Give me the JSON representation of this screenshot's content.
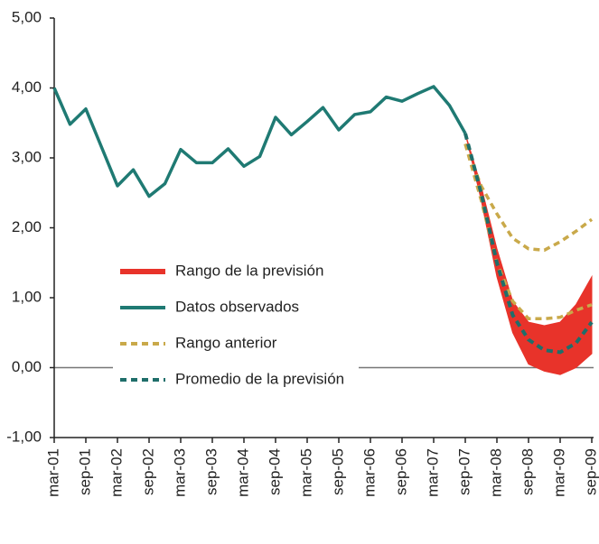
{
  "chart_data": {
    "type": "line",
    "categories": [
      "mar-01",
      null,
      "sep-01",
      null,
      "mar-02",
      null,
      "sep-02",
      null,
      "mar-03",
      null,
      "sep-03",
      null,
      "mar-04",
      null,
      "sep-04",
      null,
      "mar-05",
      null,
      "sep-05",
      null,
      "mar-06",
      null,
      "sep-06",
      null,
      "mar-07",
      null,
      "sep-07",
      null,
      "mar-08",
      null,
      "sep-08",
      null,
      "mar-09",
      null,
      "sep-09"
    ],
    "ylim": [
      -1,
      5
    ],
    "yticks": [
      {
        "value": 5,
        "label": "5,00"
      },
      {
        "value": 4,
        "label": "4,00"
      },
      {
        "value": 3,
        "label": "3,00"
      },
      {
        "value": 2,
        "label": "2,00"
      },
      {
        "value": 1,
        "label": "1,00"
      },
      {
        "value": 0,
        "label": "0,00"
      },
      {
        "value": -1,
        "label": "-1,00"
      }
    ],
    "series": [
      {
        "name": "Rango de la previsión",
        "color": "#e8332a",
        "style": "band",
        "low": [
          null,
          null,
          null,
          null,
          null,
          null,
          null,
          null,
          null,
          null,
          null,
          null,
          null,
          null,
          null,
          null,
          null,
          null,
          null,
          null,
          null,
          null,
          null,
          null,
          null,
          null,
          3.35,
          2.4,
          1.3,
          0.5,
          0.05,
          -0.05,
          -0.1,
          0.0,
          0.2
        ],
        "high": [
          null,
          null,
          null,
          null,
          null,
          null,
          null,
          null,
          null,
          null,
          null,
          null,
          null,
          null,
          null,
          null,
          null,
          null,
          null,
          null,
          null,
          null,
          null,
          null,
          null,
          null,
          3.35,
          2.6,
          1.7,
          0.95,
          0.65,
          0.6,
          0.65,
          0.9,
          1.3
        ]
      },
      {
        "name": "Datos observados",
        "color": "#1f7a73",
        "style": "solid",
        "values": [
          4.0,
          3.48,
          3.7,
          3.15,
          2.6,
          2.83,
          2.45,
          2.63,
          3.12,
          2.93,
          2.93,
          3.13,
          2.88,
          3.02,
          3.58,
          3.33,
          3.52,
          3.72,
          3.4,
          3.62,
          3.66,
          3.87,
          3.81,
          3.92,
          4.02,
          3.75,
          3.35,
          null,
          null,
          null,
          null,
          null,
          null,
          null,
          null
        ]
      },
      {
        "name": "Rango anterior",
        "color": "#c9a94a",
        "style": "dashed-band",
        "low": [
          null,
          null,
          null,
          null,
          null,
          null,
          null,
          null,
          null,
          null,
          null,
          null,
          null,
          null,
          null,
          null,
          null,
          null,
          null,
          null,
          null,
          null,
          null,
          null,
          null,
          null,
          3.2,
          2.4,
          1.5,
          0.95,
          0.7,
          0.7,
          0.72,
          0.82,
          0.9
        ],
        "high": [
          null,
          null,
          null,
          null,
          null,
          null,
          null,
          null,
          null,
          null,
          null,
          null,
          null,
          null,
          null,
          null,
          null,
          null,
          null,
          null,
          null,
          null,
          null,
          null,
          null,
          null,
          3.2,
          2.6,
          2.2,
          1.85,
          1.7,
          1.68,
          1.8,
          1.95,
          2.12
        ]
      },
      {
        "name": "Promedio de la previsión",
        "color": "#1f6e6a",
        "style": "dashed",
        "values": [
          null,
          null,
          null,
          null,
          null,
          null,
          null,
          null,
          null,
          null,
          null,
          null,
          null,
          null,
          null,
          null,
          null,
          null,
          null,
          null,
          null,
          null,
          null,
          null,
          null,
          null,
          3.35,
          2.5,
          1.5,
          0.75,
          0.4,
          0.25,
          0.22,
          0.35,
          0.65
        ]
      }
    ]
  }
}
